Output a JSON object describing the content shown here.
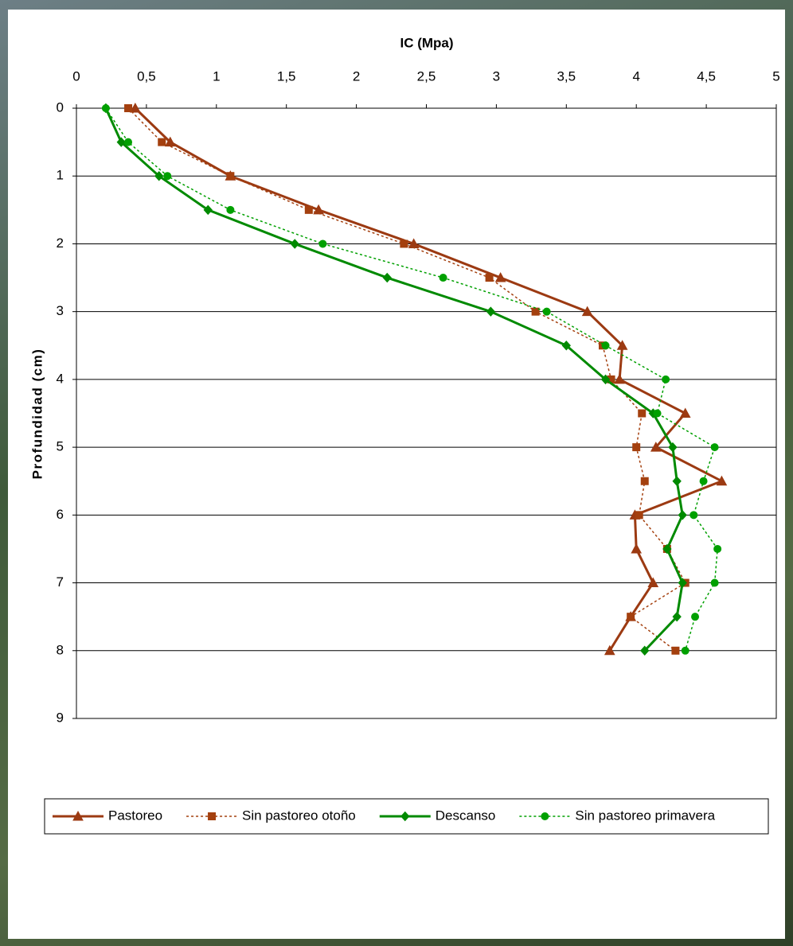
{
  "chart_data": {
    "type": "line",
    "title": "IC (Mpa)",
    "y_label": "Profundidad (cm)",
    "y": [
      0,
      0.5,
      1,
      1.5,
      2,
      2.5,
      3,
      3.5,
      4,
      4.5,
      5,
      5.5,
      6,
      6.5,
      7,
      7.5,
      8
    ],
    "xlim": [
      0,
      5
    ],
    "xticks": [
      0,
      {
        "value": 0.5,
        "label": "0,5"
      },
      1,
      {
        "value": 1.5,
        "label": "1,5"
      },
      2,
      {
        "value": 2.5,
        "label": "2,5"
      },
      3,
      {
        "value": 3.5,
        "label": "3,5"
      },
      4,
      {
        "value": 4.5,
        "label": "4,5"
      },
      5
    ],
    "ylim": [
      0,
      9
    ],
    "yticks": [
      0,
      1,
      2,
      3,
      4,
      5,
      6,
      7,
      8,
      9
    ],
    "y_inverted": true,
    "grid": true,
    "legend": "bottom",
    "series": [
      {
        "name": "Pastoreo",
        "color": "#9c3a12",
        "marker": "triangle",
        "dashed": false,
        "values": [
          0.42,
          0.67,
          1.1,
          1.73,
          2.41,
          3.03,
          3.65,
          3.9,
          3.88,
          4.35,
          4.14,
          4.61,
          3.99,
          4.0,
          4.12,
          3.96,
          3.81
        ]
      },
      {
        "name": "Sin pastoreo otoño",
        "color": "#a4400f",
        "marker": "square",
        "dashed": true,
        "values": [
          0.37,
          0.61,
          1.1,
          1.66,
          2.34,
          2.95,
          3.28,
          3.76,
          3.82,
          4.04,
          4.0,
          4.06,
          4.02,
          4.22,
          4.35,
          3.96,
          4.28
        ]
      },
      {
        "name": "Descanso",
        "color": "#008a00",
        "marker": "diamond",
        "dashed": false,
        "values": [
          0.21,
          0.32,
          0.59,
          0.94,
          1.56,
          2.22,
          2.96,
          3.5,
          3.78,
          4.12,
          4.26,
          4.29,
          4.33,
          4.22,
          4.33,
          4.29,
          4.06
        ]
      },
      {
        "name": "Sin pastoreo primavera",
        "color": "#00a000",
        "marker": "circle",
        "dashed": true,
        "values": [
          0.21,
          0.37,
          0.65,
          1.1,
          1.76,
          2.62,
          3.36,
          3.78,
          4.21,
          4.15,
          4.56,
          4.48,
          4.41,
          4.58,
          4.56,
          4.42,
          4.35
        ]
      }
    ]
  }
}
